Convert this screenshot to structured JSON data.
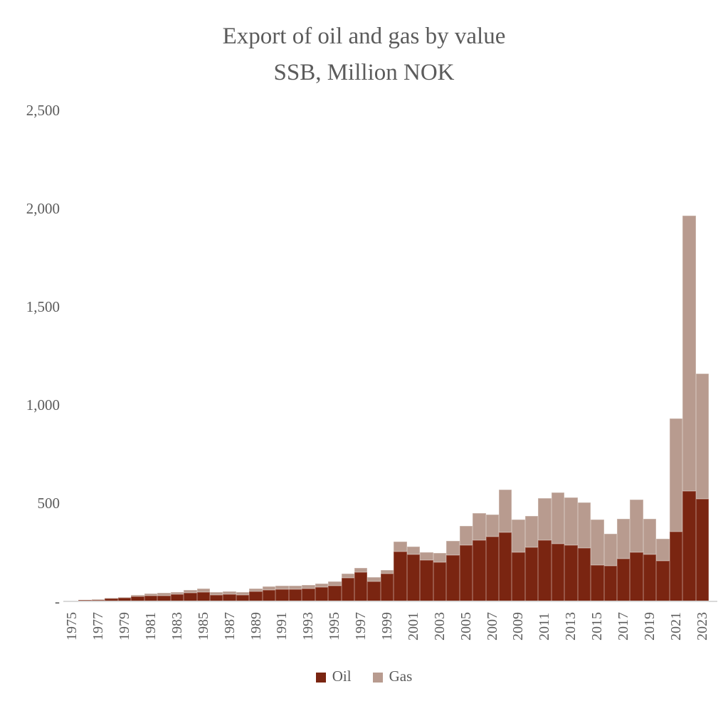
{
  "title": {
    "line1": "Export of oil and gas by value",
    "line2": "SSB, Million NOK"
  },
  "colors": {
    "oil": "#7A2511",
    "gas": "#B89B8F",
    "text": "#5B5B5B",
    "axis_line": "#D9D9D9",
    "background": "#FFFFFF"
  },
  "y_axis": {
    "tick_labels": [
      "2,500",
      "2,000",
      "1,500",
      "1,000",
      "500",
      "-"
    ],
    "tick_values": [
      2500,
      2000,
      1500,
      1000,
      500,
      0
    ],
    "max": 2500
  },
  "x_axis": {
    "tick_labels": [
      "1975",
      "1977",
      "1979",
      "1981",
      "1983",
      "1985",
      "1987",
      "1989",
      "1991",
      "1993",
      "1995",
      "1997",
      "1999",
      "2001",
      "2003",
      "2005",
      "2007",
      "2009",
      "2011",
      "2013",
      "2015",
      "2017",
      "2019",
      "2021",
      "2023"
    ]
  },
  "legend": [
    {
      "label": "Oil",
      "color_key": "oil"
    },
    {
      "label": "Gas",
      "color_key": "gas"
    }
  ],
  "chart_data": {
    "type": "bar",
    "stacked": true,
    "title": "Export of oil and gas by value",
    "subtitle": "SSB, Million NOK",
    "xlabel": "",
    "ylabel": "",
    "ylim": [
      0,
      2500
    ],
    "grid": false,
    "legend_position": "bottom",
    "categories": [
      1975,
      1976,
      1977,
      1978,
      1979,
      1980,
      1981,
      1982,
      1983,
      1984,
      1985,
      1986,
      1987,
      1988,
      1989,
      1990,
      1991,
      1992,
      1993,
      1994,
      1995,
      1996,
      1997,
      1998,
      1999,
      2000,
      2001,
      2002,
      2003,
      2004,
      2005,
      2006,
      2007,
      2008,
      2009,
      2010,
      2011,
      2012,
      2013,
      2014,
      2015,
      2016,
      2017,
      2018,
      2019,
      2020,
      2021,
      2022,
      2023
    ],
    "series": [
      {
        "name": "Oil",
        "color": "#7A2511",
        "values": [
          2,
          6,
          9,
          14,
          17,
          26,
          28,
          30,
          36,
          42,
          48,
          33,
          36,
          33,
          50,
          58,
          62,
          62,
          66,
          72,
          80,
          118,
          150,
          100,
          140,
          255,
          240,
          211,
          200,
          235,
          285,
          310,
          330,
          353,
          250,
          275,
          310,
          295,
          285,
          270,
          185,
          180,
          217,
          250,
          240,
          205,
          355,
          560,
          520
        ]
      },
      {
        "name": "Gas",
        "color": "#B89B8F",
        "values": [
          1,
          1,
          2,
          4,
          5,
          8,
          11,
          12,
          13,
          15,
          18,
          15,
          16,
          15,
          15,
          17,
          18,
          19,
          19,
          19,
          20,
          25,
          22,
          22,
          18,
          48,
          40,
          38,
          48,
          72,
          100,
          140,
          112,
          215,
          165,
          160,
          215,
          260,
          245,
          235,
          230,
          165,
          204,
          268,
          180,
          115,
          575,
          1405,
          640
        ]
      }
    ]
  }
}
